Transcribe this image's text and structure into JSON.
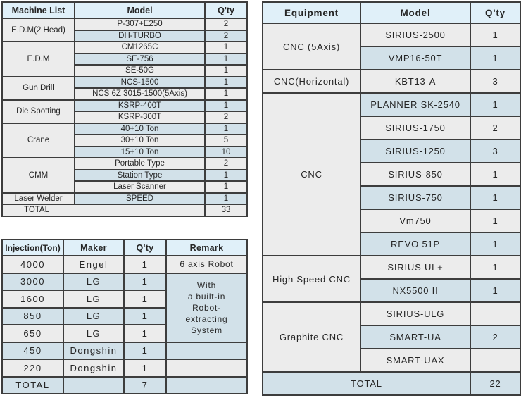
{
  "colors": {
    "header_bg": "#e0f0f9",
    "row_gray": "#ececec",
    "row_blue": "#d2e1e9",
    "border": "#3d3d3d",
    "text": "#262626",
    "page_bg": "#ffffff"
  },
  "machine_table": {
    "headers": [
      "Machine List",
      "Model",
      "Q'ty"
    ],
    "groups": [
      {
        "name": "E.D.M(2 Head)",
        "rows": [
          {
            "model": "P-307+E250",
            "qty": "2"
          },
          {
            "model": "DH-TURBO",
            "qty": "2"
          }
        ]
      },
      {
        "name": "E.D.M",
        "rows": [
          {
            "model": "CM1265C",
            "qty": "1"
          },
          {
            "model": "SE-756",
            "qty": "1"
          },
          {
            "model": "SE-50G",
            "qty": "1"
          }
        ]
      },
      {
        "name": "Gun Drill",
        "rows": [
          {
            "model": "NCS-1500",
            "qty": "1"
          },
          {
            "model": "NCS 6Z 3015-1500(5Axis)",
            "qty": "1"
          }
        ]
      },
      {
        "name": "Die Spotting",
        "rows": [
          {
            "model": "KSRP-400T",
            "qty": "1"
          },
          {
            "model": "KSRP-300T",
            "qty": "2"
          }
        ]
      },
      {
        "name": "Crane",
        "rows": [
          {
            "model": "40+10 Ton",
            "qty": "1"
          },
          {
            "model": "30+10 Ton",
            "qty": "5"
          },
          {
            "model": "15+10 Ton",
            "qty": "10"
          }
        ]
      },
      {
        "name": "CMM",
        "rows": [
          {
            "model": "Portable Type",
            "qty": "2"
          },
          {
            "model": "Station Type",
            "qty": "1"
          },
          {
            "model": "Laser Scanner",
            "qty": "1"
          }
        ]
      },
      {
        "name": "Laser Welder",
        "rows": [
          {
            "model": "SPEED",
            "qty": "1"
          }
        ]
      }
    ],
    "total_label": "TOTAL",
    "total_qty": "33"
  },
  "injection_table": {
    "headers": [
      "Injection(Ton)",
      "Maker",
      "Q'ty",
      "Remark"
    ],
    "rows": [
      {
        "ton": "4000",
        "maker": "Engel",
        "qty": "1",
        "remark": "6 axis Robot"
      },
      {
        "ton": "3000",
        "maker": "LG",
        "qty": "1"
      },
      {
        "ton": "1600",
        "maker": "LG",
        "qty": "1"
      },
      {
        "ton": "850",
        "maker": "LG",
        "qty": "1"
      },
      {
        "ton": "650",
        "maker": "LG",
        "qty": "1"
      },
      {
        "ton": "450",
        "maker": "Dongshin",
        "qty": "1",
        "remark": ""
      },
      {
        "ton": "220",
        "maker": "Dongshin",
        "qty": "1",
        "remark": ""
      }
    ],
    "merged_remark": "With\na built-in\nRobot-\nextracting\nSystem",
    "merged_remark_span": 4,
    "total_label": "TOTAL",
    "total_maker": "",
    "total_qty": "7",
    "total_remark": ""
  },
  "equipment_table": {
    "headers": [
      "Equipment",
      "Model",
      "Q'ty"
    ],
    "groups": [
      {
        "name": "CNC (5Axis)",
        "rows": [
          {
            "model": "SIRIUS-2500",
            "qty": "1"
          },
          {
            "model": "VMP16-50T",
            "qty": "1"
          }
        ]
      },
      {
        "name": "CNC(Horizontal)",
        "rows": [
          {
            "model": "KBT13-A",
            "qty": "3"
          }
        ]
      },
      {
        "name": "CNC",
        "rows": [
          {
            "model": "PLANNER SK-2540",
            "qty": "1"
          },
          {
            "model": "SIRIUS-1750",
            "qty": "2"
          },
          {
            "model": "SIRIUS-1250",
            "qty": "3"
          },
          {
            "model": "SIRIUS-850",
            "qty": "1"
          },
          {
            "model": "SIRIUS-750",
            "qty": "1"
          },
          {
            "model": "Vm750",
            "qty": "1"
          },
          {
            "model": "REVO 51P",
            "qty": "1"
          }
        ]
      },
      {
        "name": "High Speed CNC",
        "rows": [
          {
            "model": "SIRIUS UL+",
            "qty": "1"
          },
          {
            "model": "NX5500 II",
            "qty": "1"
          }
        ]
      },
      {
        "name": "Graphite CNC",
        "rows": [
          {
            "model": "SIRIUS-ULG",
            "qty": ""
          },
          {
            "model": "SMART-UA",
            "qty": "2"
          },
          {
            "model": "SMART-UAX",
            "qty": ""
          }
        ]
      }
    ],
    "total_label": "TOTAL",
    "total_qty": "22"
  }
}
